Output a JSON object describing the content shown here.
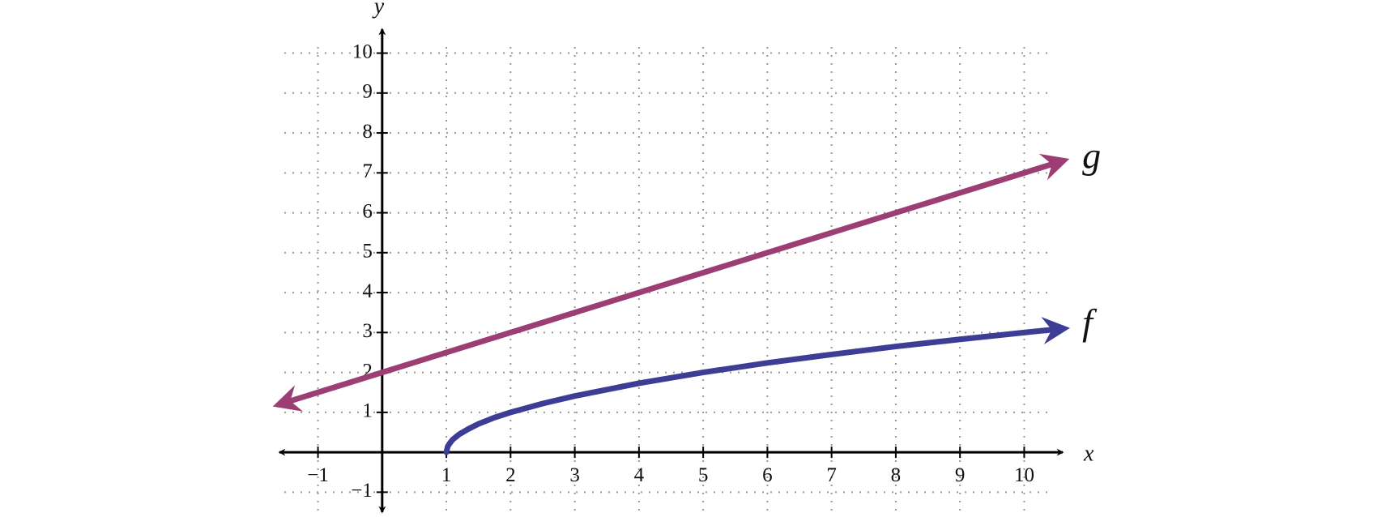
{
  "chart_data": {
    "type": "line",
    "x_label": "x",
    "y_label": "y",
    "xlim": [
      -1.6,
      10.6
    ],
    "ylim": [
      -1.5,
      10.6
    ],
    "xticks": [
      {
        "value": -1,
        "label": "−1"
      },
      1,
      2,
      3,
      4,
      5,
      6,
      7,
      8,
      9,
      10
    ],
    "yticks": [
      {
        "value": -1,
        "label": "−1"
      },
      1,
      2,
      3,
      4,
      5,
      6,
      7,
      8,
      9,
      10
    ],
    "grid": true,
    "series": [
      {
        "name": "g",
        "color": "#9c3e74",
        "x": [
          -1.5,
          10.5
        ],
        "values": [
          1.25,
          7.25
        ]
      },
      {
        "name": "f",
        "color": "#3d3d96",
        "x": [
          1,
          1.02,
          1.05,
          1.1,
          1.2,
          1.35,
          1.5,
          1.75,
          2,
          2.5,
          3,
          4,
          5,
          6,
          7,
          8,
          9,
          10,
          10.5
        ],
        "values": [
          0,
          0.14,
          0.22,
          0.32,
          0.45,
          0.59,
          0.71,
          0.87,
          1,
          1.22,
          1.41,
          1.73,
          2,
          2.24,
          2.45,
          2.65,
          2.83,
          3,
          3.08
        ]
      }
    ]
  }
}
